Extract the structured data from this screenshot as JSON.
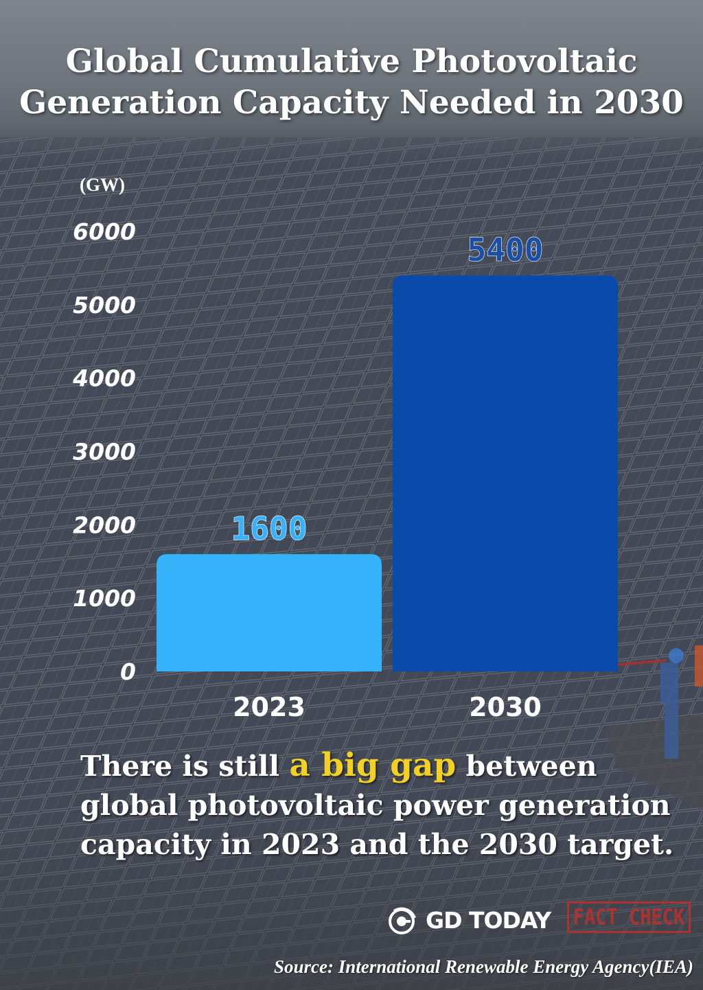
{
  "title_line1": "Global Cumulative Photovoltaic",
  "title_line2": "Generation Capacity Needed in 2030",
  "caption": {
    "before": "There is still ",
    "highlight": "a big gap",
    "after": " between global photovoltaic power generation capacity in 2023 and the 2030 target."
  },
  "brand": {
    "logo_text": "GD TODAY",
    "stamp_text": "FACT CHECK"
  },
  "source": "Source: International Renewable Energy Agency(IEA)",
  "colors": {
    "bar_2023": "#35b2f9",
    "bar_2030": "#0a4aaa",
    "label_2023": "#35b2f9",
    "label_2030": "#1a4fa6",
    "highlight": "#f2d024",
    "stamp": "#c0302c"
  },
  "chart_data": {
    "type": "bar",
    "ylabel": "(GW)",
    "categories": [
      "2023",
      "2030"
    ],
    "values": [
      1600,
      5400
    ],
    "data_labels": [
      "1600",
      "5400"
    ],
    "yticks": [
      "0",
      "1000",
      "2000",
      "3000",
      "4000",
      "5000",
      "6000"
    ],
    "ylim": [
      0,
      6000
    ],
    "grid": false,
    "legend": "none"
  }
}
